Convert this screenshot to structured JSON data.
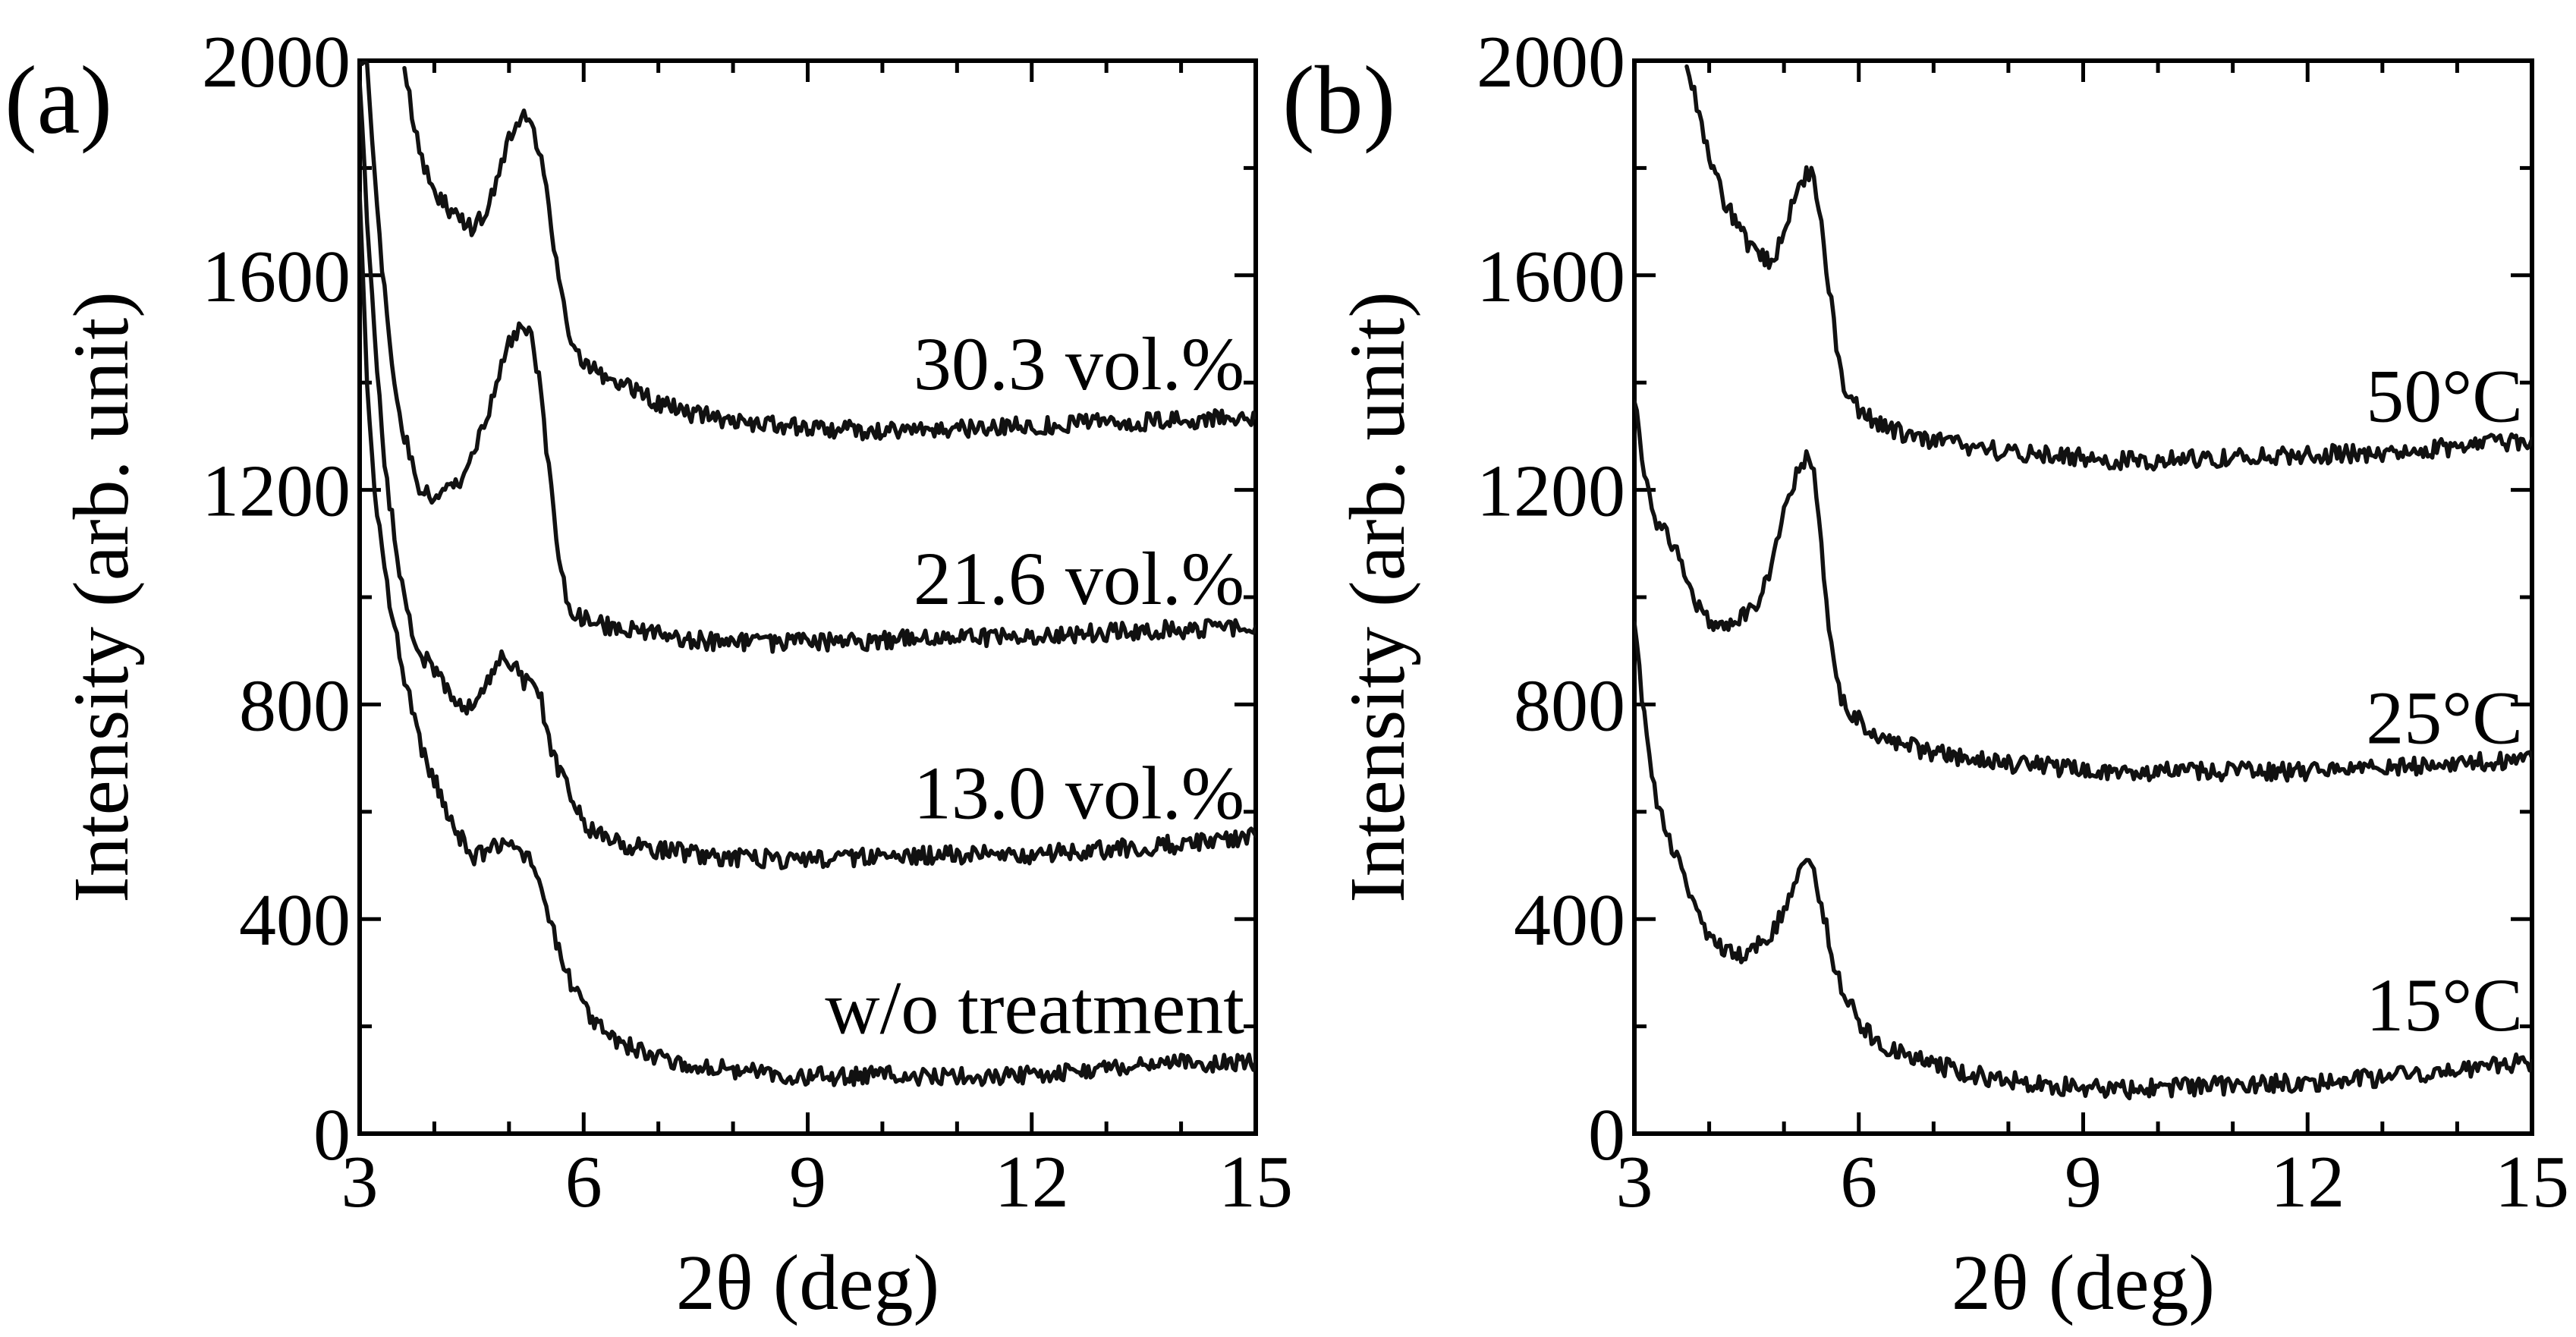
{
  "chart_data": [
    {
      "type": "line",
      "panel_label": "(a)",
      "xlabel": "2θ (deg)",
      "ylabel": "Intensity (arb. unit)",
      "xlim": [
        3,
        15
      ],
      "ylim": [
        0,
        2000
      ],
      "xticks": [
        3,
        6,
        9,
        12,
        15
      ],
      "yticks": [
        0,
        400,
        800,
        1200,
        1600,
        2000
      ],
      "xtick_labels": [
        "3",
        "6",
        "9",
        "12",
        "15"
      ],
      "ytick_labels": [
        "0",
        "400",
        "800",
        "1200",
        "1600",
        "2000"
      ],
      "legend_position": "labels beside curves, right",
      "series": [
        {
          "name": "w/o treatment",
          "label_y": 230,
          "x": [
            3.0,
            3.1,
            3.2,
            3.3,
            3.4,
            3.5,
            3.6,
            3.7,
            3.8,
            3.9,
            4.0,
            4.2,
            4.4,
            4.5,
            4.6,
            4.8,
            5.0,
            5.1,
            5.2,
            5.3,
            5.4,
            5.5,
            5.6,
            5.7,
            5.8,
            6.0,
            6.2,
            6.5,
            6.8,
            7.0,
            7.5,
            8.0,
            8.5,
            9.0,
            9.5,
            10.0,
            11.0,
            12.0,
            13.0,
            14.0,
            15.0
          ],
          "y": [
            1750,
            1380,
            1200,
            1090,
            990,
            920,
            850,
            790,
            730,
            690,
            660,
            590,
            540,
            510,
            520,
            535,
            550,
            545,
            520,
            500,
            470,
            420,
            370,
            330,
            290,
            240,
            200,
            170,
            150,
            140,
            125,
            120,
            112,
            108,
            105,
            110,
            105,
            110,
            120,
            130,
            135
          ]
        },
        {
          "name": "13.0 vol.%",
          "label_y": 630,
          "x": [
            3.0,
            3.1,
            3.2,
            3.3,
            3.4,
            3.5,
            3.6,
            3.7,
            3.8,
            3.9,
            4.0,
            4.2,
            4.4,
            4.5,
            4.6,
            4.8,
            4.9,
            5.0,
            5.1,
            5.2,
            5.3,
            5.4,
            5.5,
            5.6,
            5.8,
            6.0,
            6.2,
            6.5,
            7.0,
            7.5,
            8.0,
            8.5,
            9.0,
            9.5,
            10.0,
            11.0,
            12.0,
            13.0,
            14.0,
            15.0
          ],
          "y": [
            1950,
            1700,
            1480,
            1300,
            1180,
            1080,
            1000,
            940,
            900,
            880,
            860,
            820,
            800,
            790,
            830,
            860,
            890,
            880,
            870,
            840,
            860,
            830,
            760,
            700,
            640,
            580,
            555,
            540,
            530,
            520,
            515,
            512,
            510,
            515,
            515,
            520,
            520,
            530,
            540,
            555
          ]
        },
        {
          "name": "21.6 vol.%",
          "label_y": 1030,
          "x": [
            3.0,
            3.1,
            3.2,
            3.3,
            3.4,
            3.5,
            3.6,
            3.7,
            3.8,
            3.9,
            4.0,
            4.2,
            4.4,
            4.5,
            4.6,
            4.7,
            4.8,
            4.9,
            5.0,
            5.1,
            5.2,
            5.3,
            5.4,
            5.5,
            5.6,
            5.7,
            5.8,
            6.0,
            6.2,
            6.5,
            7.0,
            7.5,
            8.0,
            8.5,
            9.0,
            9.5,
            10.0,
            11.0,
            12.0,
            13.0,
            14.0,
            15.0
          ],
          "y": [
            2000,
            2000,
            1800,
            1620,
            1480,
            1380,
            1300,
            1250,
            1200,
            1190,
            1180,
            1200,
            1230,
            1260,
            1300,
            1330,
            1380,
            1430,
            1470,
            1490,
            1500,
            1480,
            1410,
            1280,
            1150,
            1050,
            980,
            960,
            950,
            940,
            930,
            920,
            915,
            915,
            918,
            915,
            920,
            925,
            925,
            935,
            940,
            945
          ]
        },
        {
          "name": "30.3 vol.%",
          "label_y": 1430,
          "x": [
            3.6,
            3.7,
            3.8,
            3.9,
            4.0,
            4.2,
            4.4,
            4.5,
            4.6,
            4.7,
            4.8,
            4.9,
            5.0,
            5.1,
            5.2,
            5.3,
            5.4,
            5.5,
            5.6,
            5.7,
            5.8,
            5.9,
            6.0,
            6.2,
            6.5,
            7.0,
            7.5,
            8.0,
            8.5,
            9.0,
            9.5,
            10.0,
            11.0,
            12.0,
            13.0,
            14.0,
            15.0
          ],
          "y": [
            2000,
            1900,
            1830,
            1790,
            1760,
            1720,
            1700,
            1690,
            1700,
            1720,
            1760,
            1800,
            1850,
            1880,
            1900,
            1880,
            1840,
            1760,
            1650,
            1560,
            1500,
            1460,
            1440,
            1420,
            1400,
            1360,
            1340,
            1330,
            1320,
            1315,
            1312,
            1310,
            1315,
            1320,
            1325,
            1330,
            1335
          ]
        }
      ]
    },
    {
      "type": "line",
      "panel_label": "(b)",
      "xlabel": "2θ (deg)",
      "ylabel": "Intensity (arb. unit)",
      "xlim": [
        3,
        15
      ],
      "ylim": [
        0,
        2000
      ],
      "xticks": [
        3,
        6,
        9,
        12,
        15
      ],
      "yticks": [
        0,
        400,
        800,
        1200,
        1600,
        2000
      ],
      "xtick_labels": [
        "3",
        "6",
        "9",
        "12",
        "15"
      ],
      "ytick_labels": [
        "0",
        "400",
        "800",
        "1200",
        "1600",
        "2000"
      ],
      "legend_position": "labels beside curves, right",
      "series": [
        {
          "name": "15°C",
          "label_y": 235,
          "x": [
            3.0,
            3.1,
            3.2,
            3.3,
            3.4,
            3.5,
            3.6,
            3.7,
            3.8,
            3.9,
            4.0,
            4.2,
            4.4,
            4.6,
            4.8,
            4.9,
            5.0,
            5.1,
            5.2,
            5.3,
            5.4,
            5.5,
            5.6,
            5.7,
            5.8,
            6.0,
            6.2,
            6.5,
            7.0,
            7.5,
            8.0,
            8.5,
            9.0,
            9.5,
            10.0,
            11.0,
            12.0,
            13.0,
            14.0,
            15.0
          ],
          "y": [
            960,
            810,
            700,
            620,
            570,
            530,
            500,
            470,
            430,
            390,
            360,
            340,
            330,
            350,
            370,
            390,
            420,
            450,
            480,
            500,
            490,
            430,
            360,
            300,
            260,
            210,
            175,
            150,
            130,
            110,
            100,
            92,
            85,
            82,
            85,
            90,
            95,
            105,
            120,
            135
          ]
        },
        {
          "name": "25°C",
          "label_y": 770,
          "x": [
            3.0,
            3.1,
            3.2,
            3.3,
            3.4,
            3.5,
            3.6,
            3.7,
            3.8,
            3.9,
            4.0,
            4.2,
            4.4,
            4.6,
            4.8,
            4.9,
            5.0,
            5.1,
            5.2,
            5.3,
            5.4,
            5.5,
            5.6,
            5.7,
            5.8,
            6.0,
            6.2,
            6.5,
            7.0,
            7.5,
            8.0,
            8.5,
            9.0,
            9.5,
            10.0,
            11.0,
            12.0,
            13.0,
            14.0,
            15.0
          ],
          "y": [
            1380,
            1260,
            1180,
            1140,
            1120,
            1100,
            1080,
            1040,
            1000,
            970,
            950,
            950,
            960,
            980,
            1040,
            1100,
            1160,
            1200,
            1250,
            1260,
            1230,
            1100,
            950,
            850,
            800,
            770,
            750,
            730,
            710,
            700,
            690,
            685,
            680,
            675,
            675,
            675,
            675,
            680,
            690,
            700
          ]
        },
        {
          "name": "50°C",
          "label_y": 1370,
          "x": [
            3.7,
            3.8,
            3.9,
            4.0,
            4.2,
            4.4,
            4.6,
            4.8,
            4.9,
            5.0,
            5.1,
            5.2,
            5.3,
            5.4,
            5.5,
            5.6,
            5.7,
            5.8,
            5.9,
            6.0,
            6.2,
            6.5,
            7.0,
            7.5,
            8.0,
            8.5,
            9.0,
            9.5,
            10.0,
            11.0,
            12.0,
            13.0,
            14.0,
            15.0
          ],
          "y": [
            2000,
            1940,
            1880,
            1820,
            1740,
            1690,
            1640,
            1630,
            1640,
            1680,
            1730,
            1770,
            1790,
            1780,
            1700,
            1580,
            1470,
            1400,
            1370,
            1350,
            1330,
            1310,
            1290,
            1280,
            1270,
            1265,
            1260,
            1255,
            1255,
            1260,
            1265,
            1270,
            1280,
            1295
          ]
        }
      ]
    }
  ]
}
